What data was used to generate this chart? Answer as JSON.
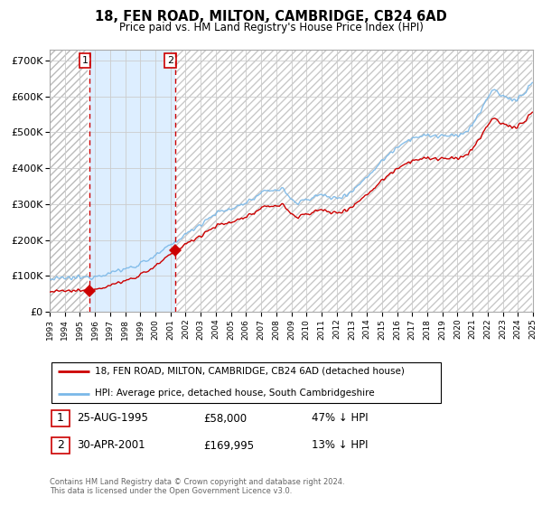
{
  "title": "18, FEN ROAD, MILTON, CAMBRIDGE, CB24 6AD",
  "subtitle": "Price paid vs. HM Land Registry's House Price Index (HPI)",
  "sale1_price": 58000,
  "sale1_label": "1",
  "sale2_price": 169995,
  "sale2_label": "2",
  "legend_line1": "18, FEN ROAD, MILTON, CAMBRIDGE, CB24 6AD (detached house)",
  "legend_line2": "HPI: Average price, detached house, South Cambridgeshire",
  "footer": "Contains HM Land Registry data © Crown copyright and database right 2024.\nThis data is licensed under the Open Government Licence v3.0.",
  "hpi_color": "#7ab8e8",
  "sale_color": "#cc0000",
  "marker_color": "#cc0000",
  "vline_color": "#cc0000",
  "blue_fill_color": "#ddeeff",
  "hatch_color": "#c8c8c8",
  "ylim": [
    0,
    730000
  ],
  "yticks": [
    0,
    100000,
    200000,
    300000,
    400000,
    500000,
    600000,
    700000
  ],
  "ytick_labels": [
    "£0",
    "£100K",
    "£200K",
    "£300K",
    "£400K",
    "£500K",
    "£600K",
    "£700K"
  ]
}
